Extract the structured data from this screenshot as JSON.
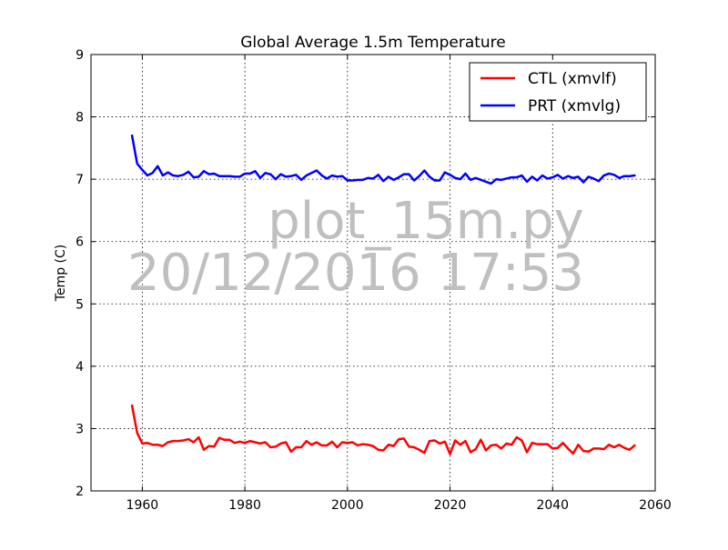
{
  "chart_data": {
    "type": "line",
    "title": "Global Average 1.5m Temperature",
    "xlabel": "",
    "ylabel": "Temp (C)",
    "xlim": [
      1950,
      2060
    ],
    "ylim": [
      2,
      9
    ],
    "xticks": [
      1960,
      1980,
      2000,
      2020,
      2040,
      2060
    ],
    "xtick_labels": [
      "1960",
      "1980",
      "2000",
      "2020",
      "2040",
      "2060"
    ],
    "yticks": [
      2,
      3,
      4,
      5,
      6,
      7,
      8,
      9
    ],
    "ytick_labels": [
      "2",
      "3",
      "4",
      "5",
      "6",
      "7",
      "8",
      "9"
    ],
    "grid": true,
    "legend_position": "top-right",
    "x": [
      1958,
      1959,
      1960,
      1961,
      1962,
      1963,
      1964,
      1965,
      1966,
      1967,
      1968,
      1969,
      1970,
      1971,
      1972,
      1973,
      1974,
      1975,
      1976,
      1977,
      1978,
      1979,
      1980,
      1981,
      1982,
      1983,
      1984,
      1985,
      1986,
      1987,
      1988,
      1989,
      1990,
      1991,
      1992,
      1993,
      1994,
      1995,
      1996,
      1997,
      1998,
      1999,
      2000,
      2001,
      2002,
      2003,
      2004,
      2005,
      2006,
      2007,
      2008,
      2009,
      2010,
      2011,
      2012,
      2013,
      2014,
      2015,
      2016,
      2017,
      2018,
      2019,
      2020,
      2021,
      2022,
      2023,
      2024,
      2025,
      2026,
      2027,
      2028,
      2029,
      2030,
      2031,
      2032,
      2033,
      2034,
      2035,
      2036,
      2037,
      2038,
      2039,
      2040,
      2041,
      2042,
      2043,
      2044,
      2045,
      2046,
      2047,
      2048,
      2049,
      2050,
      2051,
      2052,
      2053,
      2054,
      2055,
      2056
    ],
    "series": [
      {
        "name": "CTL (xmvlf)",
        "color": "#ff0000",
        "values": [
          3.37,
          2.93,
          2.76,
          2.77,
          2.74,
          2.74,
          2.72,
          2.78,
          2.8,
          2.8,
          2.81,
          2.83,
          2.78,
          2.86,
          2.66,
          2.72,
          2.71,
          2.85,
          2.82,
          2.82,
          2.77,
          2.79,
          2.77,
          2.8,
          2.78,
          2.76,
          2.78,
          2.7,
          2.71,
          2.76,
          2.78,
          2.63,
          2.7,
          2.7,
          2.8,
          2.74,
          2.78,
          2.73,
          2.73,
          2.79,
          2.7,
          2.78,
          2.77,
          2.78,
          2.73,
          2.75,
          2.74,
          2.72,
          2.66,
          2.65,
          2.74,
          2.72,
          2.83,
          2.84,
          2.71,
          2.7,
          2.66,
          2.61,
          2.8,
          2.81,
          2.76,
          2.79,
          2.59,
          2.81,
          2.74,
          2.8,
          2.62,
          2.67,
          2.82,
          2.65,
          2.73,
          2.74,
          2.68,
          2.76,
          2.74,
          2.86,
          2.81,
          2.62,
          2.77,
          2.75,
          2.75,
          2.75,
          2.68,
          2.69,
          2.77,
          2.68,
          2.6,
          2.74,
          2.64,
          2.63,
          2.68,
          2.68,
          2.67,
          2.74,
          2.7,
          2.74,
          2.69,
          2.66,
          2.73
        ]
      },
      {
        "name": "PRT (xmvlg)",
        "color": "#0000ff",
        "values": [
          7.7,
          7.25,
          7.15,
          7.06,
          7.1,
          7.21,
          7.06,
          7.11,
          7.06,
          7.05,
          7.07,
          7.12,
          7.03,
          7.04,
          7.13,
          7.08,
          7.09,
          7.05,
          7.05,
          7.05,
          7.04,
          7.04,
          7.09,
          7.09,
          7.13,
          7.02,
          7.1,
          7.08,
          7.0,
          7.08,
          7.04,
          7.05,
          7.07,
          6.99,
          7.06,
          7.1,
          7.14,
          7.06,
          7.01,
          7.06,
          7.04,
          7.05,
          6.98,
          6.98,
          6.99,
          6.99,
          7.02,
          7.01,
          7.07,
          6.97,
          7.04,
          6.99,
          7.03,
          7.08,
          7.08,
          6.98,
          7.05,
          7.14,
          7.04,
          6.98,
          6.98,
          7.11,
          7.07,
          7.02,
          7.0,
          7.09,
          6.99,
          7.02,
          6.99,
          6.96,
          6.93,
          7.0,
          6.99,
          7.01,
          7.03,
          7.03,
          7.06,
          6.96,
          7.04,
          6.98,
          7.06,
          7.01,
          7.03,
          7.07,
          7.01,
          7.05,
          7.02,
          7.04,
          6.95,
          7.04,
          7.01,
          6.97,
          7.06,
          7.09,
          7.07,
          7.02,
          7.05,
          7.05,
          7.06
        ]
      }
    ]
  },
  "watermark": {
    "line1": "plot_15m.py",
    "line2": "20/12/2016 17:53"
  }
}
